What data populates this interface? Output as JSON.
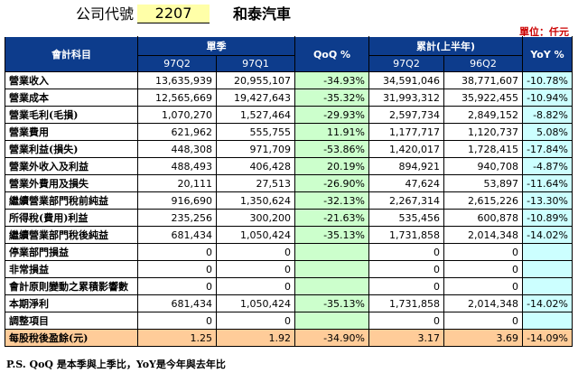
{
  "header": {
    "company_label": "公司代號",
    "company_code": "2207",
    "company_name": "和泰汽車"
  },
  "unit": "單位：仟元",
  "columns": {
    "item": "會計科目",
    "quarter_group": "單季",
    "q_cur": "97Q2",
    "q_prev": "97Q1",
    "qoq": "QoQ %",
    "cum_group": "累計(上半年)",
    "c_cur": "97Q2",
    "c_prev": "96Q2",
    "yoy": "YoY %"
  },
  "rows": [
    {
      "item": "營業收入",
      "q_cur": "13,635,939",
      "q_prev": "20,955,107",
      "qoq": "-34.93%",
      "c_cur": "34,591,046",
      "c_prev": "38,771,607",
      "yoy": "-10.78%"
    },
    {
      "item": "營業成本",
      "q_cur": "12,565,669",
      "q_prev": "19,427,643",
      "qoq": "-35.32%",
      "c_cur": "31,993,312",
      "c_prev": "35,922,455",
      "yoy": "-10.94%"
    },
    {
      "item": "營業毛利(毛損)",
      "q_cur": "1,070,270",
      "q_prev": "1,527,464",
      "qoq": "-29.93%",
      "c_cur": "2,597,734",
      "c_prev": "2,849,152",
      "yoy": "-8.82%"
    },
    {
      "item": "營業費用",
      "q_cur": "621,962",
      "q_prev": "555,755",
      "qoq": "11.91%",
      "c_cur": "1,177,717",
      "c_prev": "1,120,737",
      "yoy": "5.08%"
    },
    {
      "item": "營業利益(損失)",
      "q_cur": "448,308",
      "q_prev": "971,709",
      "qoq": "-53.86%",
      "c_cur": "1,420,017",
      "c_prev": "1,728,415",
      "yoy": "-17.84%"
    },
    {
      "item": "營業外收入及利益",
      "q_cur": "488,493",
      "q_prev": "406,428",
      "qoq": "20.19%",
      "c_cur": "894,921",
      "c_prev": "940,708",
      "yoy": "-4.87%"
    },
    {
      "item": "營業外費用及損失",
      "q_cur": "20,111",
      "q_prev": "27,513",
      "qoq": "-26.90%",
      "c_cur": "47,624",
      "c_prev": "53,897",
      "yoy": "-11.64%"
    },
    {
      "item": "繼續營業部門稅前純益",
      "q_cur": "916,690",
      "q_prev": "1,350,624",
      "qoq": "-32.13%",
      "c_cur": "2,267,314",
      "c_prev": "2,615,226",
      "yoy": "-13.30%"
    },
    {
      "item": "所得稅(費用)利益",
      "q_cur": "235,256",
      "q_prev": "300,200",
      "qoq": "-21.63%",
      "c_cur": "535,456",
      "c_prev": "600,878",
      "yoy": "-10.89%"
    },
    {
      "item": "繼續營業部門稅後純益",
      "q_cur": "681,434",
      "q_prev": "1,050,424",
      "qoq": "-35.13%",
      "c_cur": "1,731,858",
      "c_prev": "2,014,348",
      "yoy": "-14.02%"
    },
    {
      "item": "停業部門損益",
      "q_cur": "0",
      "q_prev": "0",
      "qoq": "",
      "c_cur": "0",
      "c_prev": "0",
      "yoy": ""
    },
    {
      "item": "非常損益",
      "q_cur": "0",
      "q_prev": "0",
      "qoq": "",
      "c_cur": "0",
      "c_prev": "0",
      "yoy": ""
    },
    {
      "item": "會計原則變動之累積影響數",
      "q_cur": "0",
      "q_prev": "0",
      "qoq": "",
      "c_cur": "0",
      "c_prev": "0",
      "yoy": ""
    },
    {
      "item": "本期淨利",
      "q_cur": "681,434",
      "q_prev": "1,050,424",
      "qoq": "-35.13%",
      "c_cur": "1,731,858",
      "c_prev": "2,014,348",
      "yoy": "-14.02%"
    },
    {
      "item": "調整項目",
      "q_cur": "0",
      "q_prev": "0",
      "qoq": "",
      "c_cur": "0",
      "c_prev": "0",
      "yoy": ""
    }
  ],
  "eps_row": {
    "item": "每股稅後盈餘(元)",
    "q_cur": "1.25",
    "q_prev": "1.92",
    "qoq": "-34.90%",
    "c_cur": "3.17",
    "c_prev": "3.69",
    "yoy": "-14.09%"
  },
  "note": "P.S. QoQ 是本季與上季比，YoY是今年與去年比"
}
